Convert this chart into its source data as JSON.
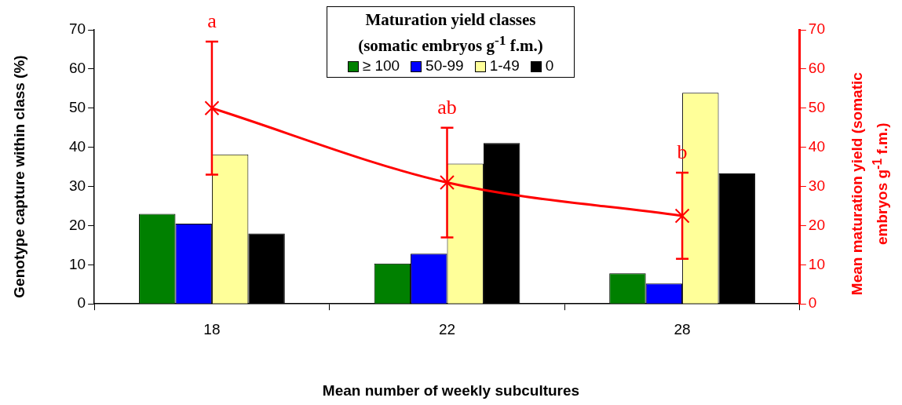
{
  "chart_data": {
    "type": "bar",
    "xlabel": "Mean number of weekly subcultures",
    "ylabel": "Genotype capture within class (%)",
    "y2label": "Mean maturation yield (somatic embryos g$^{-1}$ f.m.)",
    "legend_title": "Maturation yield classes (somatic embryos g$^{-1}$ f.m.)",
    "legend": "top",
    "categories": [
      "18",
      "22",
      "28"
    ],
    "series": [
      {
        "name": "≥ 100",
        "color": "#008000",
        "values": [
          23,
          10.3,
          7.8
        ]
      },
      {
        "name": "50-99",
        "color": "#0000ff",
        "values": [
          20.5,
          12.8,
          5.2
        ]
      },
      {
        "name": "1-49",
        "color": "#ffff99",
        "values": [
          38.2,
          35.8,
          53.9
        ]
      },
      {
        "name": "0",
        "color": "#000000",
        "values": [
          18,
          41.1,
          33.3
        ]
      },
      {
        "type": "line",
        "axis": "y2",
        "color": "#ff0000",
        "marker": "cross",
        "values": [
          50,
          31,
          22.5
        ],
        "errors": [
          17,
          14,
          11
        ]
      }
    ],
    "ylim": [
      0,
      70
    ],
    "yticks": [
      0,
      10,
      20,
      30,
      40,
      50,
      60,
      70
    ],
    "y2lim": [
      0,
      70
    ],
    "y2ticks": [
      0,
      10,
      20,
      30,
      40,
      50,
      60,
      70
    ],
    "grid": false,
    "annotations": [
      {
        "text": "a",
        "x": "18",
        "y": 67
      },
      {
        "text": "ab",
        "x": "22",
        "y": 45
      },
      {
        "text": "b",
        "x": "28",
        "y": 33.5
      }
    ]
  }
}
